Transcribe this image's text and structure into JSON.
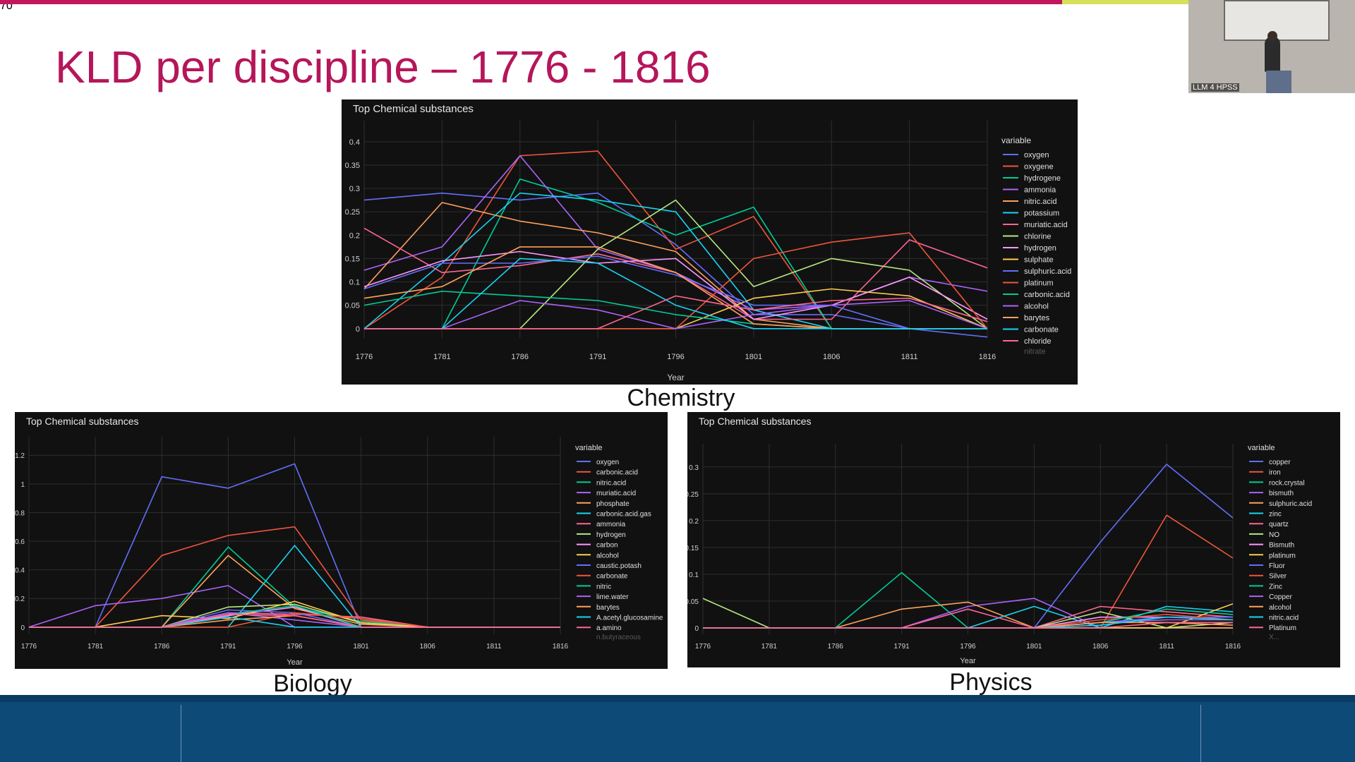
{
  "slide": {
    "title": "KLD per discipline – 1776 - 1816",
    "page_number": "70",
    "accent_color": "#c2185b",
    "secondary_accent": "#d7e05a",
    "footer_color": "#0d4a78"
  },
  "webcam": {
    "label": "LLM 4 HPSS"
  },
  "captions": {
    "chemistry": "Chemistry",
    "biology": "Biology",
    "physics": "Physics"
  },
  "chart_data": [
    {
      "id": "chemistry",
      "type": "line",
      "title": "Top Chemical substances",
      "xlabel": "Year",
      "ylabel": "",
      "x": [
        1776,
        1781,
        1786,
        1791,
        1796,
        1801,
        1806,
        1811,
        1816
      ],
      "xlim": [
        1776,
        1816
      ],
      "ylim": [
        -0.02,
        0.43
      ],
      "yticks": [
        0,
        0.05,
        0.1,
        0.15,
        0.2,
        0.25,
        0.3,
        0.35,
        0.4
      ],
      "ytick_labels": [
        "0",
        "0.05",
        "0.1",
        "0.15",
        "0.2",
        "0.25",
        "0.3",
        "0.35",
        "0.4"
      ],
      "legend_title": "variable",
      "legend_position": "right",
      "legend_overflow": "nitrate",
      "grid": true,
      "series": [
        {
          "name": "oxygen",
          "color": "#636efa",
          "values": [
            0.275,
            0.29,
            0.275,
            0.29,
            0.18,
            0.03,
            0.03,
            0,
            -0.018
          ]
        },
        {
          "name": "oxygene",
          "color": "#ef553b",
          "values": [
            0,
            0.11,
            0.37,
            0.38,
            0.17,
            0.24,
            0,
            0,
            0
          ]
        },
        {
          "name": "hydrogene",
          "color": "#00cc96",
          "values": [
            0,
            0,
            0.32,
            0.27,
            0.2,
            0.26,
            0,
            0,
            0
          ]
        },
        {
          "name": "ammonia",
          "color": "#ab63fa",
          "values": [
            0.125,
            0.175,
            0.37,
            0.17,
            0.12,
            0.04,
            0.05,
            0.11,
            0.08
          ]
        },
        {
          "name": "nitric.acid",
          "color": "#ffa15a",
          "values": [
            0.085,
            0.27,
            0.23,
            0.205,
            0.165,
            0.02,
            0,
            0,
            0
          ]
        },
        {
          "name": "potassium",
          "color": "#19d3f3",
          "values": [
            0,
            0.14,
            0.29,
            0.275,
            0.25,
            0.04,
            0,
            0,
            0
          ]
        },
        {
          "name": "muriatic.acid",
          "color": "#ff6692",
          "values": [
            0.215,
            0.12,
            0.135,
            0.16,
            0.12,
            0.02,
            0.02,
            0.19,
            0.13
          ]
        },
        {
          "name": "chlorine",
          "color": "#b6e880",
          "values": [
            0,
            0,
            0,
            0.17,
            0.275,
            0.09,
            0.15,
            0.125,
            0
          ]
        },
        {
          "name": "hydrogen",
          "color": "#ff97ff",
          "values": [
            0.09,
            0.145,
            0.165,
            0.14,
            0.15,
            0.02,
            0.05,
            0.11,
            0.02
          ]
        },
        {
          "name": "sulphate",
          "color": "#fecb52",
          "values": [
            0,
            0,
            0,
            0,
            0,
            0.065,
            0.085,
            0.07,
            0
          ]
        },
        {
          "name": "sulphuric.acid",
          "color": "#636efa",
          "values": [
            0.085,
            0.14,
            0.14,
            0.155,
            0.115,
            0.05,
            0.05,
            0,
            0
          ]
        },
        {
          "name": "platinum",
          "color": "#ef553b",
          "values": [
            0,
            0,
            0,
            0,
            0,
            0.15,
            0.185,
            0.205,
            0
          ]
        },
        {
          "name": "carbonic.acid",
          "color": "#00cc96",
          "values": [
            0.05,
            0.08,
            0.07,
            0.06,
            0.03,
            0.01,
            0,
            0,
            0
          ]
        },
        {
          "name": "alcohol",
          "color": "#ab63fa",
          "values": [
            0,
            0,
            0.06,
            0.04,
            0,
            0.03,
            0.05,
            0.06,
            0
          ]
        },
        {
          "name": "barytes",
          "color": "#ffa15a",
          "values": [
            0.065,
            0.09,
            0.175,
            0.175,
            0.12,
            0.01,
            0,
            0,
            0
          ]
        },
        {
          "name": "carbonate",
          "color": "#19d3f3",
          "values": [
            0,
            0,
            0.15,
            0.14,
            0.05,
            0,
            0,
            0,
            0
          ]
        },
        {
          "name": "chloride",
          "color": "#ff6692",
          "values": [
            0,
            0,
            0,
            0,
            0.07,
            0.04,
            0.06,
            0.065,
            0.015
          ]
        }
      ]
    },
    {
      "id": "biology",
      "type": "line",
      "title": "Top Chemical substances",
      "xlabel": "Year",
      "ylabel": "",
      "x": [
        1776,
        1781,
        1786,
        1791,
        1796,
        1801,
        1806,
        1811,
        1816
      ],
      "xlim": [
        1776,
        1816
      ],
      "ylim": [
        -0.05,
        1.28
      ],
      "yticks": [
        0,
        0.2,
        0.4,
        0.6,
        0.8,
        1,
        1.2
      ],
      "ytick_labels": [
        "0",
        "0.2",
        "0.4",
        "0.6",
        "0.8",
        "1",
        "1.2"
      ],
      "legend_title": "variable",
      "legend_position": "right",
      "legend_overflow": "n.butyraceous",
      "grid": true,
      "series": [
        {
          "name": "oxygen",
          "color": "#636efa",
          "values": [
            0,
            0,
            1.05,
            0.97,
            1.14,
            0,
            0,
            0,
            0
          ]
        },
        {
          "name": "carbonic.acid",
          "color": "#ef553b",
          "values": [
            0,
            0,
            0.5,
            0.64,
            0.7,
            0.05,
            0,
            0,
            0
          ]
        },
        {
          "name": "nitric.acid",
          "color": "#00cc96",
          "values": [
            0,
            0,
            0,
            0.56,
            0.14,
            0.04,
            0,
            0,
            0
          ]
        },
        {
          "name": "muriatic.acid",
          "color": "#ab63fa",
          "values": [
            0,
            0.15,
            0.2,
            0.29,
            0,
            0,
            0,
            0,
            0
          ]
        },
        {
          "name": "phosphate",
          "color": "#ffa15a",
          "values": [
            0,
            0,
            0,
            0.5,
            0.13,
            0.02,
            0,
            0,
            0
          ]
        },
        {
          "name": "carbonic.acid.gas",
          "color": "#19d3f3",
          "values": [
            0,
            0,
            0,
            0,
            0.57,
            0,
            0,
            0,
            0
          ]
        },
        {
          "name": "ammonia",
          "color": "#ff6692",
          "values": [
            0,
            0,
            0,
            0.1,
            0.09,
            0.07,
            0,
            0,
            0
          ]
        },
        {
          "name": "hydrogen",
          "color": "#b6e880",
          "values": [
            0,
            0,
            0,
            0.14,
            0.16,
            0.03,
            0,
            0,
            0
          ]
        },
        {
          "name": "carbon",
          "color": "#ff97ff",
          "values": [
            0,
            0,
            0,
            0.08,
            0.14,
            0,
            0,
            0,
            0
          ]
        },
        {
          "name": "alcohol",
          "color": "#fecb52",
          "values": [
            0,
            0,
            0.08,
            0.06,
            0.18,
            0.03,
            0,
            0,
            0
          ]
        },
        {
          "name": "caustic.potash",
          "color": "#636efa",
          "values": [
            0,
            0,
            0,
            0.12,
            0.1,
            0,
            0,
            0,
            0
          ]
        },
        {
          "name": "carbonate",
          "color": "#ef553b",
          "values": [
            0,
            0,
            0,
            0,
            0.1,
            0.06,
            0,
            0,
            0
          ]
        },
        {
          "name": "nitric",
          "color": "#00cc96",
          "values": [
            0,
            0,
            0,
            0.09,
            0.15,
            0,
            0,
            0,
            0
          ]
        },
        {
          "name": "lime.water",
          "color": "#ab63fa",
          "values": [
            0,
            0,
            0,
            0.1,
            0.05,
            0,
            0,
            0,
            0
          ]
        },
        {
          "name": "barytes",
          "color": "#ffa15a",
          "values": [
            0,
            0,
            0,
            0.05,
            0.08,
            0,
            0,
            0,
            0
          ]
        },
        {
          "name": "A.acetyl.glucosamine",
          "color": "#19d3f3",
          "values": [
            0,
            0,
            0,
            0.07,
            0,
            0,
            0,
            0,
            0
          ]
        },
        {
          "name": "a.amino",
          "color": "#ff6692",
          "values": [
            0,
            0,
            0,
            0.09,
            0.08,
            0,
            0,
            0,
            0
          ]
        }
      ]
    },
    {
      "id": "physics",
      "type": "line",
      "title": "Top Chemical substances",
      "xlabel": "Year",
      "ylabel": "",
      "x": [
        1776,
        1781,
        1786,
        1791,
        1796,
        1801,
        1806,
        1811,
        1816
      ],
      "xlim": [
        1776,
        1816
      ],
      "ylim": [
        -0.012,
        0.33
      ],
      "yticks": [
        0,
        0.05,
        0.1,
        0.15,
        0.2,
        0.25,
        0.3
      ],
      "ytick_labels": [
        "0",
        "0.05",
        "0.1",
        "0.15",
        "0.2",
        "0.25",
        "0.3"
      ],
      "legend_title": "variable",
      "legend_position": "right",
      "legend_overflow": "X...",
      "grid": true,
      "series": [
        {
          "name": "copper",
          "color": "#636efa",
          "values": [
            0,
            0,
            0,
            0,
            0,
            0,
            0.16,
            0.305,
            0.205
          ]
        },
        {
          "name": "iron",
          "color": "#ef553b",
          "values": [
            0,
            0,
            0,
            0,
            0,
            0,
            0,
            0.21,
            0.13
          ]
        },
        {
          "name": "rock.crystal",
          "color": "#00cc96",
          "values": [
            0,
            0,
            0,
            0.103,
            0,
            0,
            0,
            0,
            0
          ]
        },
        {
          "name": "bismuth",
          "color": "#ab63fa",
          "values": [
            0,
            0,
            0,
            0,
            0.04,
            0.055,
            0,
            0,
            0
          ]
        },
        {
          "name": "sulphuric.acid",
          "color": "#ffa15a",
          "values": [
            0,
            0,
            0,
            0.035,
            0.048,
            0,
            0,
            0,
            0
          ]
        },
        {
          "name": "zinc",
          "color": "#19d3f3",
          "values": [
            0,
            0,
            0,
            0,
            0,
            0.04,
            0,
            0.04,
            0.03
          ]
        },
        {
          "name": "quartz",
          "color": "#ff6692",
          "values": [
            0,
            0,
            0,
            0,
            0.035,
            0,
            0.04,
            0.03,
            0.02
          ]
        },
        {
          "name": "NO",
          "color": "#b6e880",
          "values": [
            0.055,
            0,
            0,
            0,
            0,
            0,
            0.03,
            0,
            0.01
          ]
        },
        {
          "name": "Bismuth",
          "color": "#ff97ff",
          "values": [
            0,
            0,
            0,
            0,
            0,
            0,
            0.02,
            0.02,
            0.02
          ]
        },
        {
          "name": "platinum",
          "color": "#fecb52",
          "values": [
            0,
            0,
            0,
            0,
            0,
            0,
            0,
            0,
            0.045
          ]
        },
        {
          "name": "Fluor",
          "color": "#636efa",
          "values": [
            0,
            0,
            0,
            0,
            0,
            0,
            0.01,
            0.02,
            0.02
          ]
        },
        {
          "name": "Silver",
          "color": "#ef553b",
          "values": [
            0,
            0,
            0,
            0,
            0,
            0,
            0.015,
            0.025,
            0.015
          ]
        },
        {
          "name": "Zinc",
          "color": "#00cc96",
          "values": [
            0,
            0,
            0,
            0,
            0,
            0,
            0.01,
            0.035,
            0.025
          ]
        },
        {
          "name": "Copper",
          "color": "#ab63fa",
          "values": [
            0,
            0,
            0,
            0,
            0,
            0,
            0.01,
            0.015,
            0.015
          ]
        },
        {
          "name": "alcohol",
          "color": "#ffa15a",
          "values": [
            0,
            0,
            0,
            0,
            0,
            0,
            0.01,
            0.01,
            0.005
          ]
        },
        {
          "name": "nitric.acid",
          "color": "#19d3f3",
          "values": [
            0,
            0,
            0,
            0,
            0,
            0,
            0.005,
            0.02,
            0.015
          ]
        },
        {
          "name": "Platinum",
          "color": "#ff6692",
          "values": [
            0,
            0,
            0,
            0,
            0,
            0,
            0,
            0.01,
            0.01
          ]
        }
      ]
    }
  ]
}
